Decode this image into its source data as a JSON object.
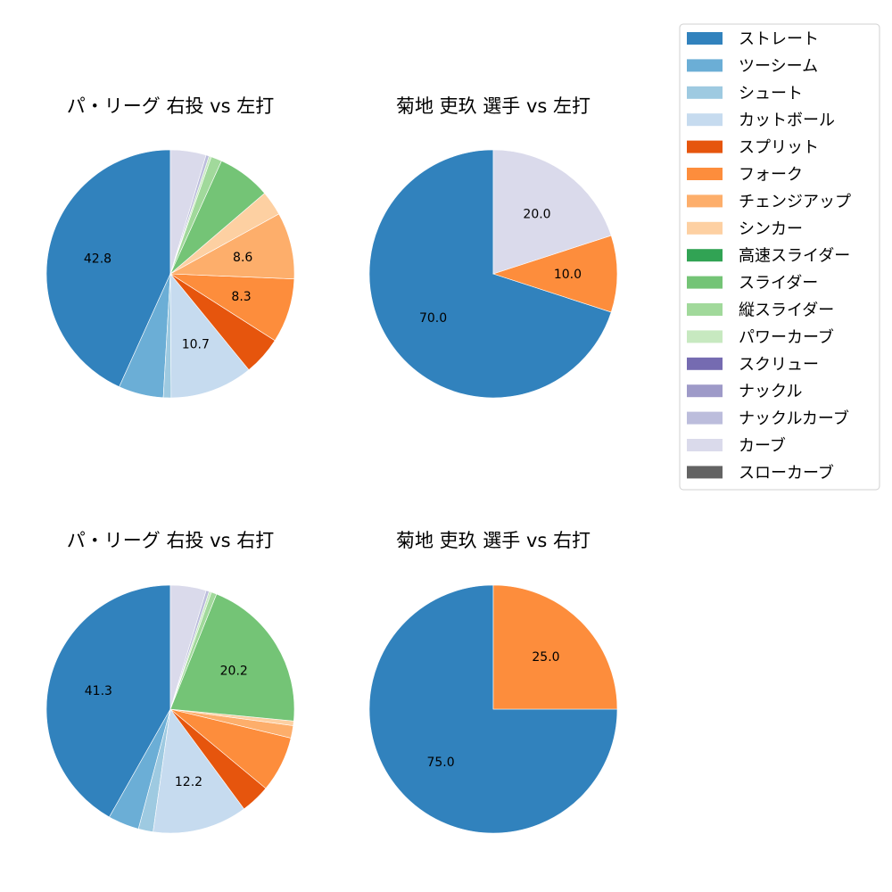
{
  "legend": {
    "items": [
      {
        "label": "ストレート",
        "color": "#3182bd"
      },
      {
        "label": "ツーシーム",
        "color": "#6baed6"
      },
      {
        "label": "シュート",
        "color": "#9ecae1"
      },
      {
        "label": "カットボール",
        "color": "#c6dbef"
      },
      {
        "label": "スプリット",
        "color": "#e6550d"
      },
      {
        "label": "フォーク",
        "color": "#fd8d3c"
      },
      {
        "label": "チェンジアップ",
        "color": "#fdae6b"
      },
      {
        "label": "シンカー",
        "color": "#fdd0a2"
      },
      {
        "label": "高速スライダー",
        "color": "#31a354"
      },
      {
        "label": "スライダー",
        "color": "#74c476"
      },
      {
        "label": "縦スライダー",
        "color": "#a1d99b"
      },
      {
        "label": "パワーカーブ",
        "color": "#c7e9c0"
      },
      {
        "label": "スクリュー",
        "color": "#756bb1"
      },
      {
        "label": "ナックル",
        "color": "#9e9ac8"
      },
      {
        "label": "ナックルカーブ",
        "color": "#bcbddc"
      },
      {
        "label": "カーブ",
        "color": "#dadaeb"
      },
      {
        "label": "スローカーブ",
        "color": "#636363"
      }
    ]
  },
  "chart_data": [
    {
      "type": "pie",
      "title": "パ・リーグ 右投 vs 左打",
      "slices": [
        {
          "pitch": "ストレート",
          "value": 42.8,
          "label": "42.8"
        },
        {
          "pitch": "ツーシーム",
          "value": 5.8,
          "label": ""
        },
        {
          "pitch": "シュート",
          "value": 1.0,
          "label": ""
        },
        {
          "pitch": "カットボール",
          "value": 10.7,
          "label": "10.7"
        },
        {
          "pitch": "スプリット",
          "value": 5.0,
          "label": ""
        },
        {
          "pitch": "フォーク",
          "value": 8.3,
          "label": "8.3"
        },
        {
          "pitch": "チェンジアップ",
          "value": 8.6,
          "label": "8.6"
        },
        {
          "pitch": "シンカー",
          "value": 3.2,
          "label": ""
        },
        {
          "pitch": "スライダー",
          "value": 6.9,
          "label": ""
        },
        {
          "pitch": "縦スライダー",
          "value": 1.4,
          "label": ""
        },
        {
          "pitch": "パワーカーブ",
          "value": 0.3,
          "label": ""
        },
        {
          "pitch": "ナックルカーブ",
          "value": 0.4,
          "label": ""
        },
        {
          "pitch": "カーブ",
          "value": 4.6,
          "label": ""
        }
      ]
    },
    {
      "type": "pie",
      "title": "菊地 吏玖 選手 vs 左打",
      "slices": [
        {
          "pitch": "ストレート",
          "value": 70.0,
          "label": "70.0"
        },
        {
          "pitch": "フォーク",
          "value": 10.0,
          "label": "10.0"
        },
        {
          "pitch": "カーブ",
          "value": 20.0,
          "label": "20.0"
        }
      ]
    },
    {
      "type": "pie",
      "title": "パ・リーグ 右投 vs 右打",
      "slices": [
        {
          "pitch": "ストレート",
          "value": 41.3,
          "label": "41.3"
        },
        {
          "pitch": "ツーシーム",
          "value": 4.0,
          "label": ""
        },
        {
          "pitch": "シュート",
          "value": 1.9,
          "label": ""
        },
        {
          "pitch": "カットボール",
          "value": 12.2,
          "label": "12.2"
        },
        {
          "pitch": "スプリット",
          "value": 3.8,
          "label": ""
        },
        {
          "pitch": "フォーク",
          "value": 7.2,
          "label": ""
        },
        {
          "pitch": "チェンジアップ",
          "value": 1.6,
          "label": ""
        },
        {
          "pitch": "シンカー",
          "value": 0.6,
          "label": ""
        },
        {
          "pitch": "スライダー",
          "value": 20.2,
          "label": "20.2"
        },
        {
          "pitch": "縦スライダー",
          "value": 0.7,
          "label": ""
        },
        {
          "pitch": "パワーカーブ",
          "value": 0.3,
          "label": ""
        },
        {
          "pitch": "ナックルカーブ",
          "value": 0.4,
          "label": ""
        },
        {
          "pitch": "カーブ",
          "value": 4.6,
          "label": ""
        }
      ]
    },
    {
      "type": "pie",
      "title": "菊地 吏玖 選手 vs 右打",
      "slices": [
        {
          "pitch": "ストレート",
          "value": 75.0,
          "label": "75.0"
        },
        {
          "pitch": "フォーク",
          "value": 25.0,
          "label": "25.0"
        }
      ]
    }
  ]
}
